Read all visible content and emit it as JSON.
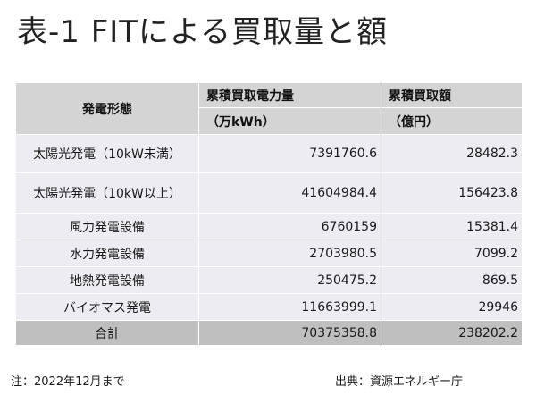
{
  "title": "表-1 FITによる買取量と額",
  "table": {
    "header": {
      "col1": "発電形態",
      "col2": "累積買取電力量",
      "col2_unit": "（万kWh）",
      "col3": "累積買取額",
      "col3_unit": "（億円）"
    },
    "rows": [
      {
        "label": "太陽光発電（10kW未満）",
        "energy": "7391760.6",
        "amount": "28482.3"
      },
      {
        "label": "太陽光発電（10kW以上）",
        "energy": "41604984.4",
        "amount": "156423.8"
      },
      {
        "label": "風力発電設備",
        "energy": "6760159",
        "amount": "15381.4"
      },
      {
        "label": "水力発電設備",
        "energy": "2703980.5",
        "amount": "7099.2"
      },
      {
        "label": "地熱発電設備",
        "energy": "250475.2",
        "amount": "869.5"
      },
      {
        "label": "バイオマス発電",
        "energy": "11663999.1",
        "amount": "29946"
      }
    ],
    "total": {
      "label": "合計",
      "energy": "70375358.8",
      "amount": "238202.2"
    }
  },
  "note": "注：2022年12月まで",
  "source": "出典：資源エネルギー庁"
}
